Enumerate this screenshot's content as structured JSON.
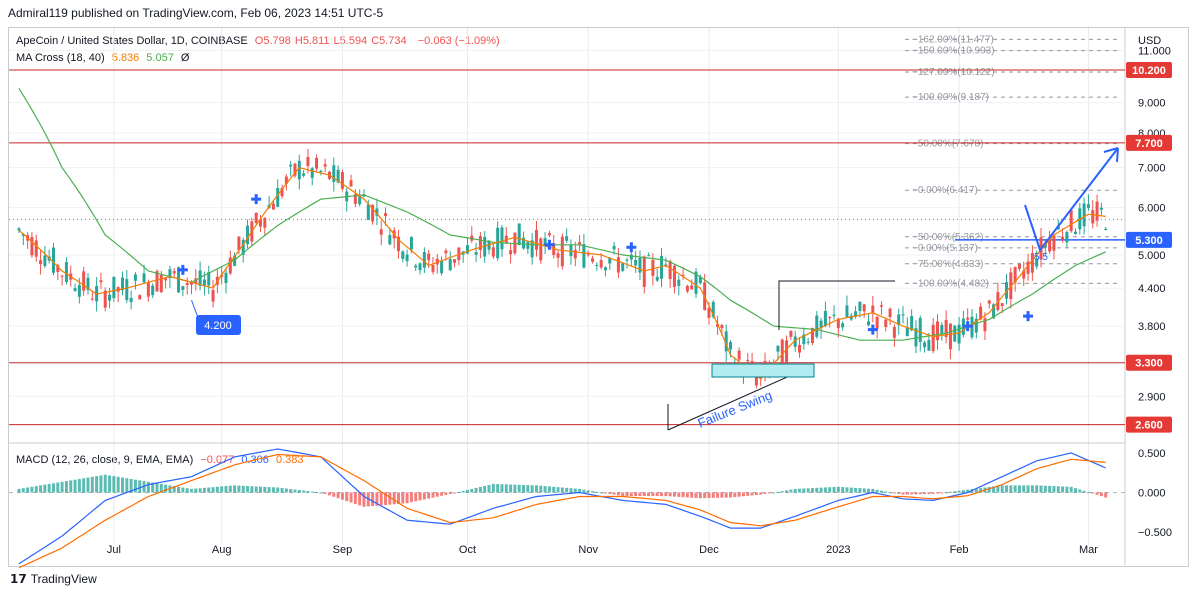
{
  "header": {
    "published": "Admiral119 published on TradingView.com, Feb 06, 2023 14:51 UTC-5"
  },
  "legend": {
    "symbol": "ApeCoin / United States Dollar, 1D, COINBASE",
    "ohlc": [
      {
        "label": "O",
        "value": "5.798"
      },
      {
        "label": "H",
        "value": "5.811"
      },
      {
        "label": "L",
        "value": "5.594"
      },
      {
        "label": "C",
        "value": "5.734"
      }
    ],
    "change": "−0.063 (−1.09%)",
    "ma_label": "MA Cross (18, 40)",
    "ma_fast": "5.836",
    "ma_slow": "5.057",
    "ma_extra": "Ø",
    "macd_label": "MACD (12, 26, close, 9, EMA, EMA)",
    "macd_hist": "−0.077",
    "macd_line": "0.306",
    "macd_signal": "0.383"
  },
  "footer": {
    "brand": "TradingView"
  },
  "colors": {
    "up": "#26a69a",
    "down": "#ef5350",
    "ma_fast": "#f57c00",
    "ma_slow": "#4caf50",
    "hline": "#c62828",
    "label_bg": "#e53935",
    "current_bg": "#2962ff",
    "macd": "#2962ff",
    "signal": "#ff6d00"
  },
  "chart_data": {
    "type": "candlestick",
    "currency": "USD",
    "y_scale": "log",
    "ylim": [
      2.45,
      11.9
    ],
    "x_ticks": [
      "Jul",
      "Aug",
      "Sep",
      "Oct",
      "Nov",
      "Dec",
      "2023",
      "Feb",
      "Mar"
    ],
    "y_ticks": [
      "11.000",
      "10.200",
      "9.000",
      "8.000",
      "7.700",
      "7.000",
      "6.000",
      "5.300",
      "5.000",
      "4.400",
      "3.800",
      "3.300",
      "2.900",
      "2.600"
    ],
    "horizontal_levels": [
      {
        "value": 10.2,
        "label": "10.200"
      },
      {
        "value": 7.7,
        "label": "7.700"
      },
      {
        "value": 3.3,
        "label": "3.300"
      },
      {
        "value": 2.6,
        "label": "2.600"
      }
    ],
    "current_price": {
      "value": 5.3,
      "label": "5.300"
    },
    "price_dotted_level": 5.734,
    "fib_levels": [
      {
        "value": 11.477,
        "label": "162.00%(11.477)"
      },
      {
        "value": 10.993,
        "label": "150.00%(10.993)"
      },
      {
        "value": 10.122,
        "label": "127.00%(10.122)"
      },
      {
        "value": 9.187,
        "label": "100.00%(9.187)"
      },
      {
        "value": 7.678,
        "label": "50.00%(7.678)"
      },
      {
        "value": 6.417,
        "label": "0.00%(6.417)"
      },
      {
        "value": 5.362,
        "label": "50.00%(5.362)"
      },
      {
        "value": 5.137,
        "label": "0.00%(5.137)"
      },
      {
        "value": 4.833,
        "label": "75.00%(4.833)"
      },
      {
        "value": 4.482,
        "label": "100.00%(4.482)"
      }
    ],
    "annotations": [
      {
        "text": "4.200",
        "type": "callout"
      },
      {
        "text": "Failure Swing",
        "type": "text"
      },
      {
        "text": "5.5",
        "type": "text"
      }
    ],
    "price_series": {
      "fast_ma": [
        [
          0,
          5.5
        ],
        [
          10,
          4.7
        ],
        [
          18,
          4.3
        ],
        [
          25,
          4.4
        ],
        [
          35,
          4.6
        ],
        [
          45,
          4.4
        ],
        [
          52,
          5.2
        ],
        [
          60,
          6.3
        ],
        [
          65,
          7.0
        ],
        [
          72,
          6.8
        ],
        [
          80,
          6.2
        ],
        [
          88,
          5.3
        ],
        [
          95,
          4.8
        ],
        [
          105,
          5.1
        ],
        [
          115,
          5.35
        ],
        [
          125,
          5.1
        ],
        [
          135,
          5.0
        ],
        [
          145,
          4.7
        ],
        [
          150,
          4.8
        ],
        [
          158,
          4.4
        ],
        [
          165,
          3.4
        ],
        [
          172,
          3.1
        ],
        [
          180,
          3.6
        ],
        [
          190,
          3.9
        ],
        [
          198,
          4.0
        ],
        [
          205,
          3.8
        ],
        [
          212,
          3.65
        ],
        [
          218,
          3.7
        ],
        [
          225,
          4.0
        ],
        [
          232,
          4.6
        ],
        [
          240,
          5.4
        ],
        [
          248,
          5.85
        ],
        [
          252,
          5.8
        ]
      ],
      "slow_ma": [
        [
          0,
          9.5
        ],
        [
          10,
          7.0
        ],
        [
          20,
          5.4
        ],
        [
          30,
          4.7
        ],
        [
          40,
          4.5
        ],
        [
          50,
          4.9
        ],
        [
          60,
          5.6
        ],
        [
          70,
          6.2
        ],
        [
          80,
          6.3
        ],
        [
          90,
          5.9
        ],
        [
          100,
          5.4
        ],
        [
          110,
          5.25
        ],
        [
          120,
          5.2
        ],
        [
          130,
          5.2
        ],
        [
          140,
          5.0
        ],
        [
          150,
          4.9
        ],
        [
          158,
          4.6
        ],
        [
          165,
          4.2
        ],
        [
          175,
          3.8
        ],
        [
          185,
          3.75
        ],
        [
          195,
          3.6
        ],
        [
          205,
          3.6
        ],
        [
          215,
          3.7
        ],
        [
          225,
          3.9
        ],
        [
          235,
          4.3
        ],
        [
          245,
          4.8
        ],
        [
          252,
          5.06
        ]
      ]
    },
    "macd": {
      "ylim": [
        -0.6,
        0.6
      ],
      "y_ticks": [
        "0.500",
        "0.000",
        "−0.500"
      ],
      "macd_line": [
        [
          0,
          -0.9
        ],
        [
          10,
          -0.55
        ],
        [
          20,
          -0.1
        ],
        [
          30,
          0.1
        ],
        [
          40,
          0.2
        ],
        [
          50,
          0.45
        ],
        [
          60,
          0.55
        ],
        [
          70,
          0.45
        ],
        [
          80,
          -0.05
        ],
        [
          90,
          -0.35
        ],
        [
          100,
          -0.4
        ],
        [
          110,
          -0.2
        ],
        [
          120,
          -0.05
        ],
        [
          130,
          0.0
        ],
        [
          140,
          -0.1
        ],
        [
          150,
          -0.15
        ],
        [
          158,
          -0.3
        ],
        [
          165,
          -0.45
        ],
        [
          172,
          -0.45
        ],
        [
          180,
          -0.3
        ],
        [
          190,
          -0.1
        ],
        [
          198,
          0.0
        ],
        [
          205,
          -0.08
        ],
        [
          212,
          -0.1
        ],
        [
          220,
          0.0
        ],
        [
          228,
          0.2
        ],
        [
          236,
          0.4
        ],
        [
          244,
          0.5
        ],
        [
          252,
          0.31
        ]
      ],
      "signal_line": [
        [
          0,
          -0.95
        ],
        [
          10,
          -0.7
        ],
        [
          20,
          -0.35
        ],
        [
          30,
          -0.05
        ],
        [
          40,
          0.15
        ],
        [
          50,
          0.35
        ],
        [
          60,
          0.48
        ],
        [
          70,
          0.45
        ],
        [
          80,
          0.15
        ],
        [
          90,
          -0.2
        ],
        [
          100,
          -0.38
        ],
        [
          110,
          -0.32
        ],
        [
          120,
          -0.15
        ],
        [
          130,
          -0.05
        ],
        [
          140,
          -0.05
        ],
        [
          150,
          -0.1
        ],
        [
          158,
          -0.22
        ],
        [
          165,
          -0.38
        ],
        [
          172,
          -0.42
        ],
        [
          180,
          -0.35
        ],
        [
          190,
          -0.18
        ],
        [
          198,
          -0.05
        ],
        [
          205,
          -0.05
        ],
        [
          212,
          -0.08
        ],
        [
          220,
          -0.04
        ],
        [
          228,
          0.1
        ],
        [
          236,
          0.3
        ],
        [
          244,
          0.42
        ],
        [
          252,
          0.38
        ]
      ]
    }
  }
}
